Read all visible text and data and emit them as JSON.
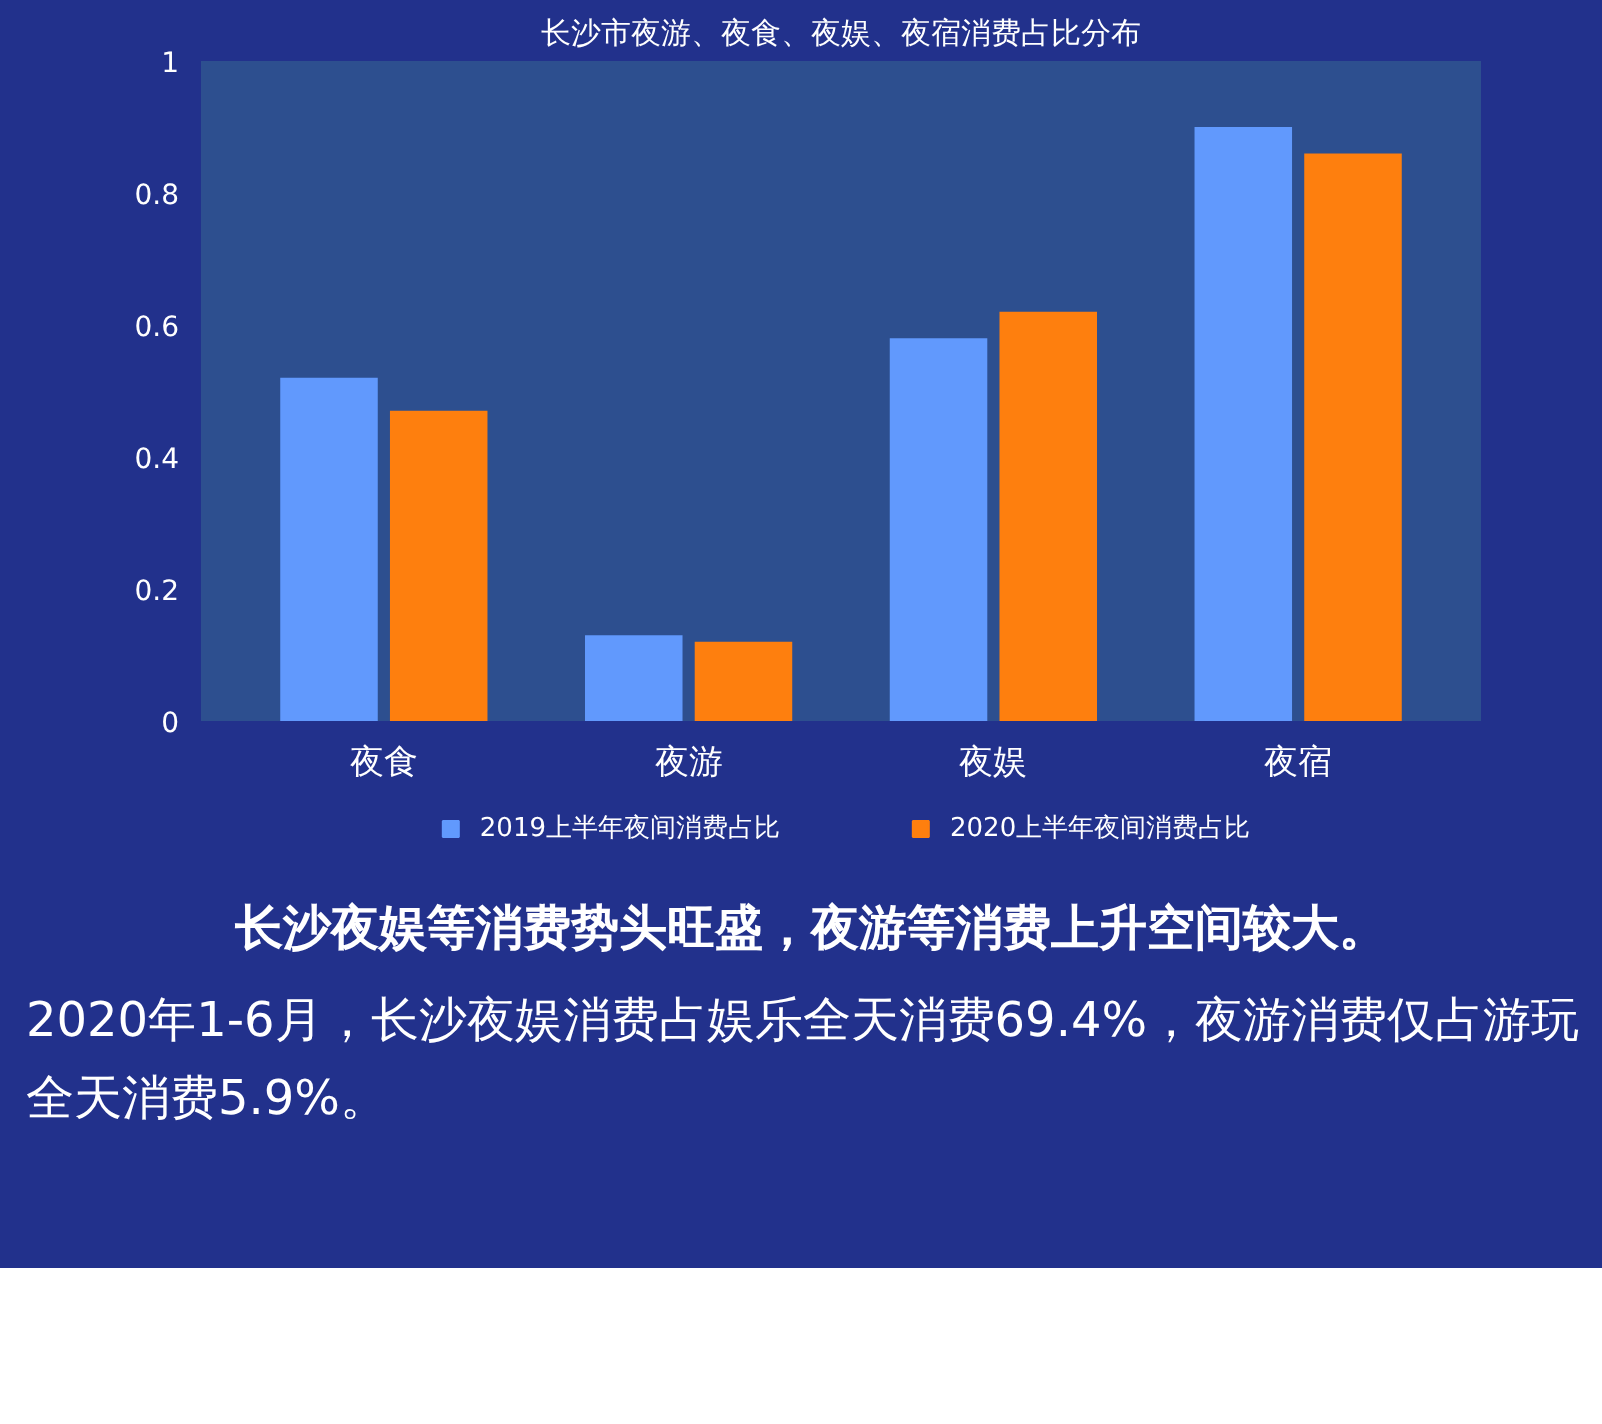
{
  "chart_data": {
    "type": "bar",
    "title": "长沙市夜游、夜食、夜娱、夜宿消费占比分布",
    "categories": [
      "夜食",
      "夜游",
      "夜娱",
      "夜宿"
    ],
    "series": [
      {
        "name": "2019上半年夜间消费占比",
        "color": "#6199fd",
        "values": [
          0.52,
          0.13,
          0.58,
          0.9
        ]
      },
      {
        "name": "2020上半年夜间消费占比",
        "color": "#fe7f0e",
        "values": [
          0.47,
          0.12,
          0.62,
          0.86
        ]
      }
    ],
    "ylim": [
      0,
      1
    ],
    "yticks": [
      0,
      0.2,
      0.4,
      0.6,
      0.8,
      1
    ],
    "grid": false,
    "legend": "bottom",
    "annotations": [
      "长沙夜娱等消费势头旺盛，夜游等消费上升空间较大。",
      "2020年1-6月，长沙夜娱消费占娱乐全天消费69.4%，夜游消费仅占游玩全天消费5.9%。"
    ]
  }
}
